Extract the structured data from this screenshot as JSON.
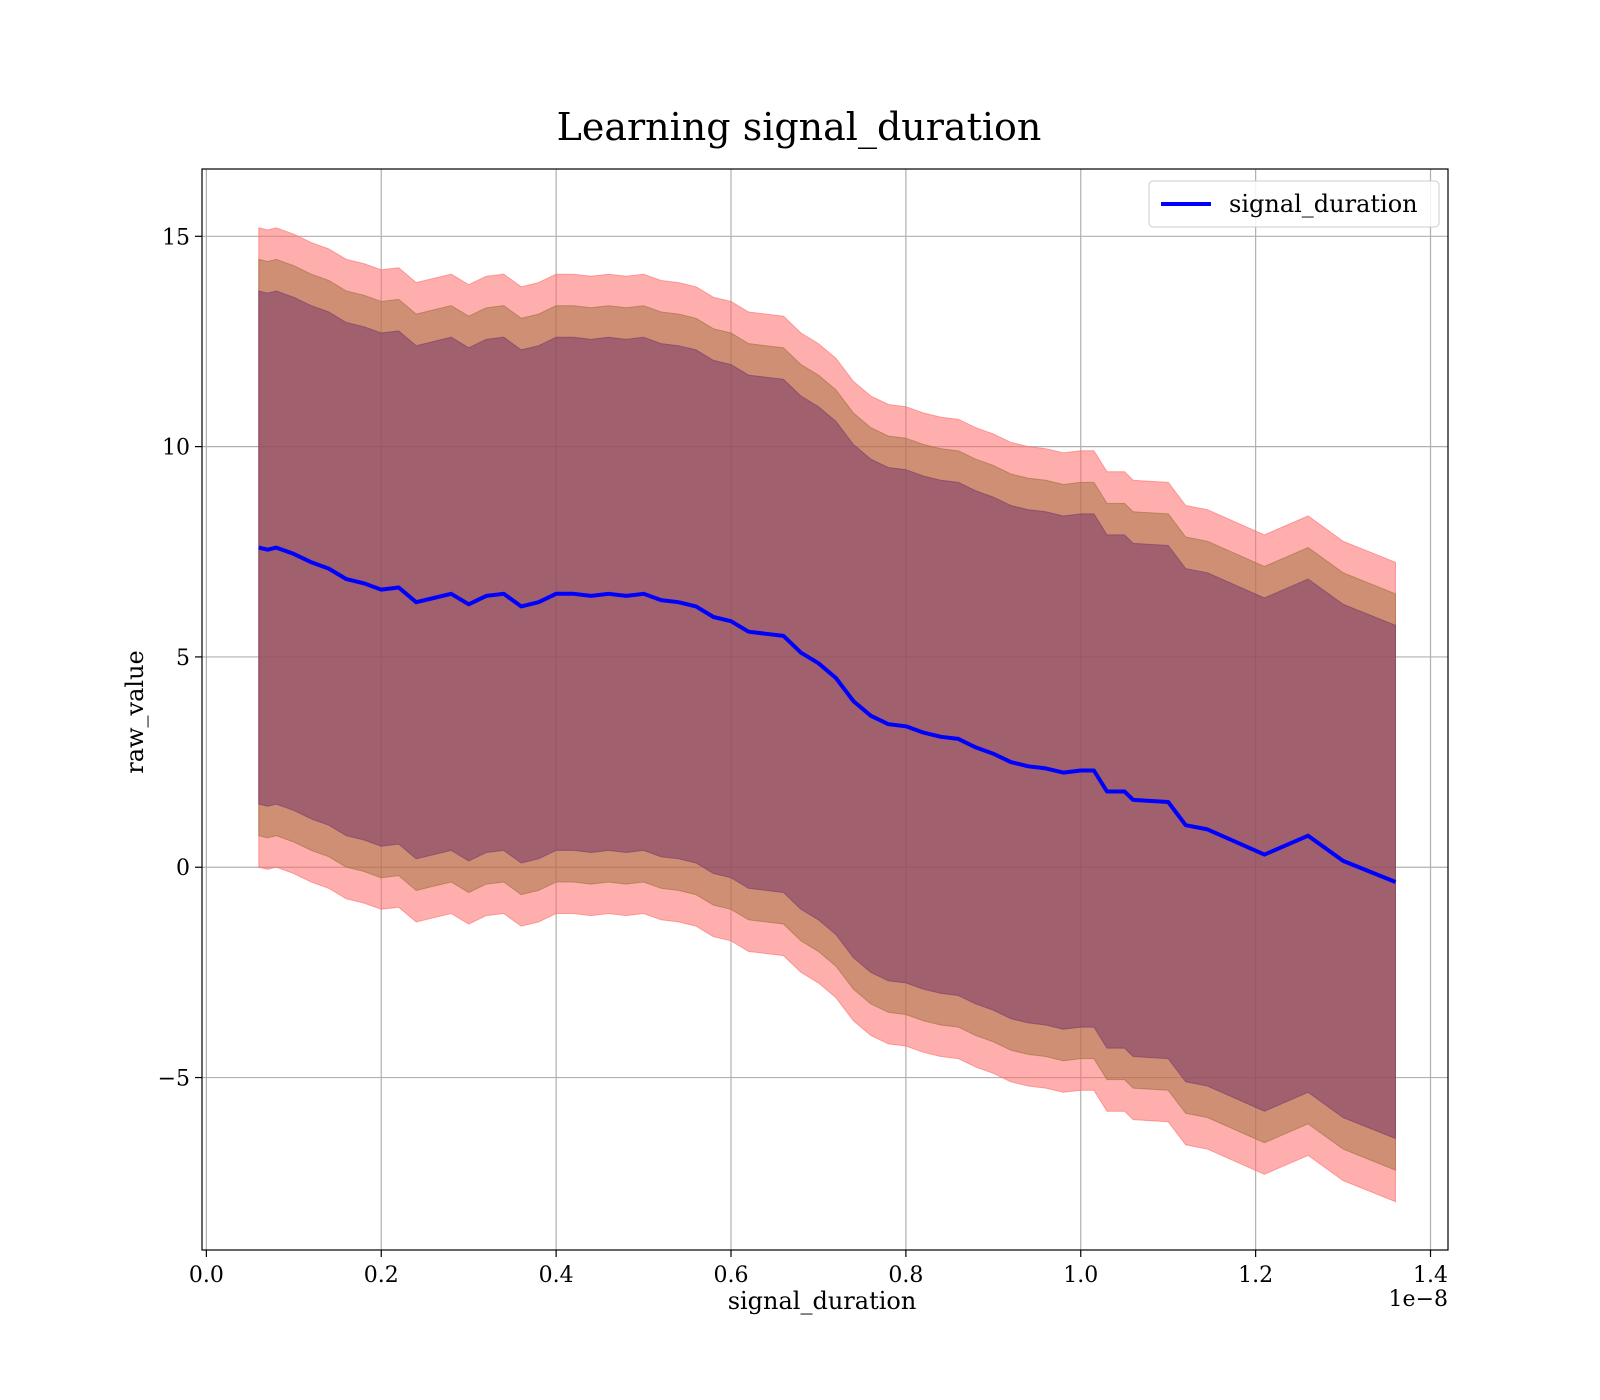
{
  "chart_data": {
    "type": "line",
    "title": "Learning signal_duration",
    "xlabel": "signal_duration",
    "ylabel": "raw_value",
    "x_scale_note": "1e−8",
    "x_scale_factor": 1e-08,
    "xlim": [
      -0.005,
      1.42
    ],
    "ylim": [
      -9.1,
      16.6
    ],
    "x_ticks": [
      0.0,
      0.2,
      0.4,
      0.6,
      0.8,
      1.0,
      1.2,
      1.4
    ],
    "x_tick_labels": [
      "0.0",
      "0.2",
      "0.4",
      "0.6",
      "0.8",
      "1.0",
      "1.2",
      "1.4"
    ],
    "y_ticks": [
      -5,
      0,
      5,
      10,
      15
    ],
    "y_tick_labels": [
      "−5",
      "0",
      "5",
      "10",
      "15"
    ],
    "grid": true,
    "legend_position": "top-right",
    "series": [
      {
        "name": "signal_duration",
        "color": "#0000ff",
        "x": [
          0.06,
          0.07,
          0.08,
          0.1,
          0.12,
          0.14,
          0.16,
          0.18,
          0.2,
          0.22,
          0.24,
          0.26,
          0.28,
          0.3,
          0.32,
          0.34,
          0.36,
          0.38,
          0.4,
          0.42,
          0.44,
          0.46,
          0.48,
          0.5,
          0.52,
          0.54,
          0.56,
          0.58,
          0.6,
          0.62,
          0.64,
          0.66,
          0.68,
          0.7,
          0.72,
          0.74,
          0.76,
          0.78,
          0.8,
          0.82,
          0.84,
          0.86,
          0.88,
          0.9,
          0.92,
          0.94,
          0.96,
          0.98,
          1.0,
          1.015,
          1.03,
          1.05,
          1.06,
          1.1,
          1.12,
          1.145,
          1.21,
          1.26,
          1.3,
          1.36
        ],
        "values": [
          7.6,
          7.55,
          7.6,
          7.45,
          7.25,
          7.1,
          6.85,
          6.75,
          6.6,
          6.65,
          6.3,
          6.4,
          6.5,
          6.25,
          6.45,
          6.5,
          6.2,
          6.3,
          6.5,
          6.5,
          6.45,
          6.5,
          6.45,
          6.5,
          6.35,
          6.3,
          6.2,
          5.95,
          5.85,
          5.6,
          5.55,
          5.5,
          5.1,
          4.85,
          4.5,
          3.95,
          3.6,
          3.4,
          3.35,
          3.2,
          3.1,
          3.05,
          2.85,
          2.7,
          2.5,
          2.4,
          2.35,
          2.25,
          2.3,
          2.3,
          1.8,
          1.8,
          1.6,
          1.55,
          1.0,
          0.9,
          0.3,
          0.75,
          0.15,
          -0.35
        ]
      }
    ],
    "bands": [
      {
        "offset": 7.6,
        "color": "#ff6b6b",
        "opacity": 0.55
      },
      {
        "offset": 6.85,
        "color": "#a0703a",
        "opacity": 0.5
      },
      {
        "offset": 6.1,
        "color": "#7a3a6a",
        "opacity": 0.55
      }
    ]
  }
}
